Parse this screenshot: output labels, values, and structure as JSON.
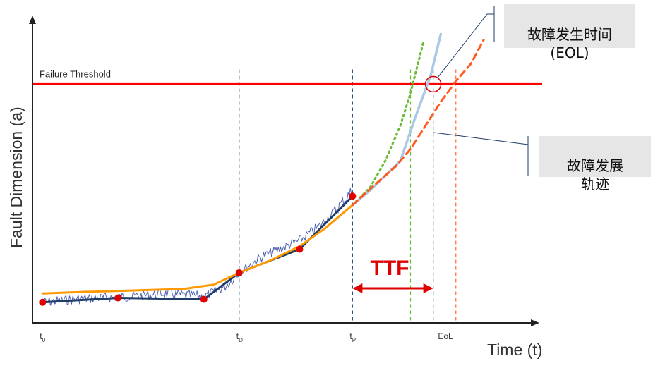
{
  "chart_data": {
    "type": "line",
    "ylabel": "Fault Dimension (a)",
    "xlabel": "Time (t)",
    "xlim": [
      0,
      100
    ],
    "ylim": [
      0,
      100
    ],
    "threshold": {
      "label": "Failure Threshold",
      "value": 81,
      "color": "#ff0000"
    },
    "x_ticks": [
      {
        "label": "t",
        "sub": "0",
        "x": 2
      },
      {
        "label": "t",
        "sub": "D",
        "x": 41
      },
      {
        "label": "t",
        "sub": "P",
        "x": 63.5
      },
      {
        "label": "EoL",
        "sub": "",
        "x": 81
      }
    ],
    "vlines": [
      {
        "x": 41,
        "color": "#2f4f7f"
      },
      {
        "x": 63.5,
        "color": "#2f4f7f"
      },
      {
        "x": 75,
        "color": "#66bb33"
      },
      {
        "x": 79.5,
        "color": "#2f4f7f"
      },
      {
        "x": 84,
        "color": "#ff6633"
      }
    ],
    "ttf": {
      "label": "TTF",
      "x_start": 63.5,
      "x_end": 79.5,
      "color": "#dd0000"
    },
    "series": [
      {
        "style": "measured-noise",
        "color": "#4a5fb0",
        "x": [
          2,
          8,
          14,
          20,
          26,
          30,
          34,
          38,
          41,
          45,
          49,
          53,
          57,
          60,
          63.5
        ],
        "y": [
          7,
          8,
          8.5,
          9,
          10,
          9.5,
          9,
          12,
          17,
          22,
          25,
          28,
          33,
          38,
          45
        ]
      },
      {
        "style": "piecewise-fit",
        "color": "#1f3d66",
        "x": [
          2,
          17,
          34,
          41,
          53,
          63.5
        ],
        "y": [
          7,
          8.5,
          8,
          17,
          25,
          43
        ]
      },
      {
        "style": "smooth-fit",
        "color": "#ff9900",
        "x": [
          2,
          10,
          20,
          30,
          36,
          41,
          47,
          53,
          58,
          63.5
        ],
        "y": [
          10,
          10.5,
          11,
          11.5,
          13,
          17,
          21,
          26,
          32,
          40
        ]
      },
      {
        "style": "dotted-prediction",
        "color": "#66bb33",
        "x": [
          63.5,
          67,
          70,
          73,
          75,
          77.5
        ],
        "y": [
          40,
          46,
          55,
          67,
          78,
          95
        ]
      },
      {
        "style": "actual-trajectory",
        "color": "#a9c9e6",
        "x": [
          63.5,
          67,
          73,
          76,
          79,
          81
        ],
        "y": [
          40,
          45,
          55,
          70,
          84,
          98
        ]
      },
      {
        "style": "dashed-prediction",
        "color": "#ff5a1f",
        "x": [
          63.5,
          68,
          72,
          75,
          78,
          81,
          84,
          87,
          89.5
        ],
        "y": [
          40,
          47,
          53,
          59,
          67,
          75,
          82,
          88,
          96
        ]
      }
    ],
    "fit_points": {
      "color": "#e00000",
      "x": [
        2,
        17,
        34,
        41,
        53,
        63.5
      ],
      "y": [
        7,
        8.5,
        8,
        17,
        25,
        43
      ]
    },
    "eol_marker": {
      "x": 79.5,
      "y": 81,
      "color": "#e00000"
    },
    "annotations": [
      {
        "id": "eol",
        "text": "故障发生时间\n(EOL)"
      },
      {
        "id": "traj",
        "text": "故障发展\n轨迹"
      }
    ]
  }
}
